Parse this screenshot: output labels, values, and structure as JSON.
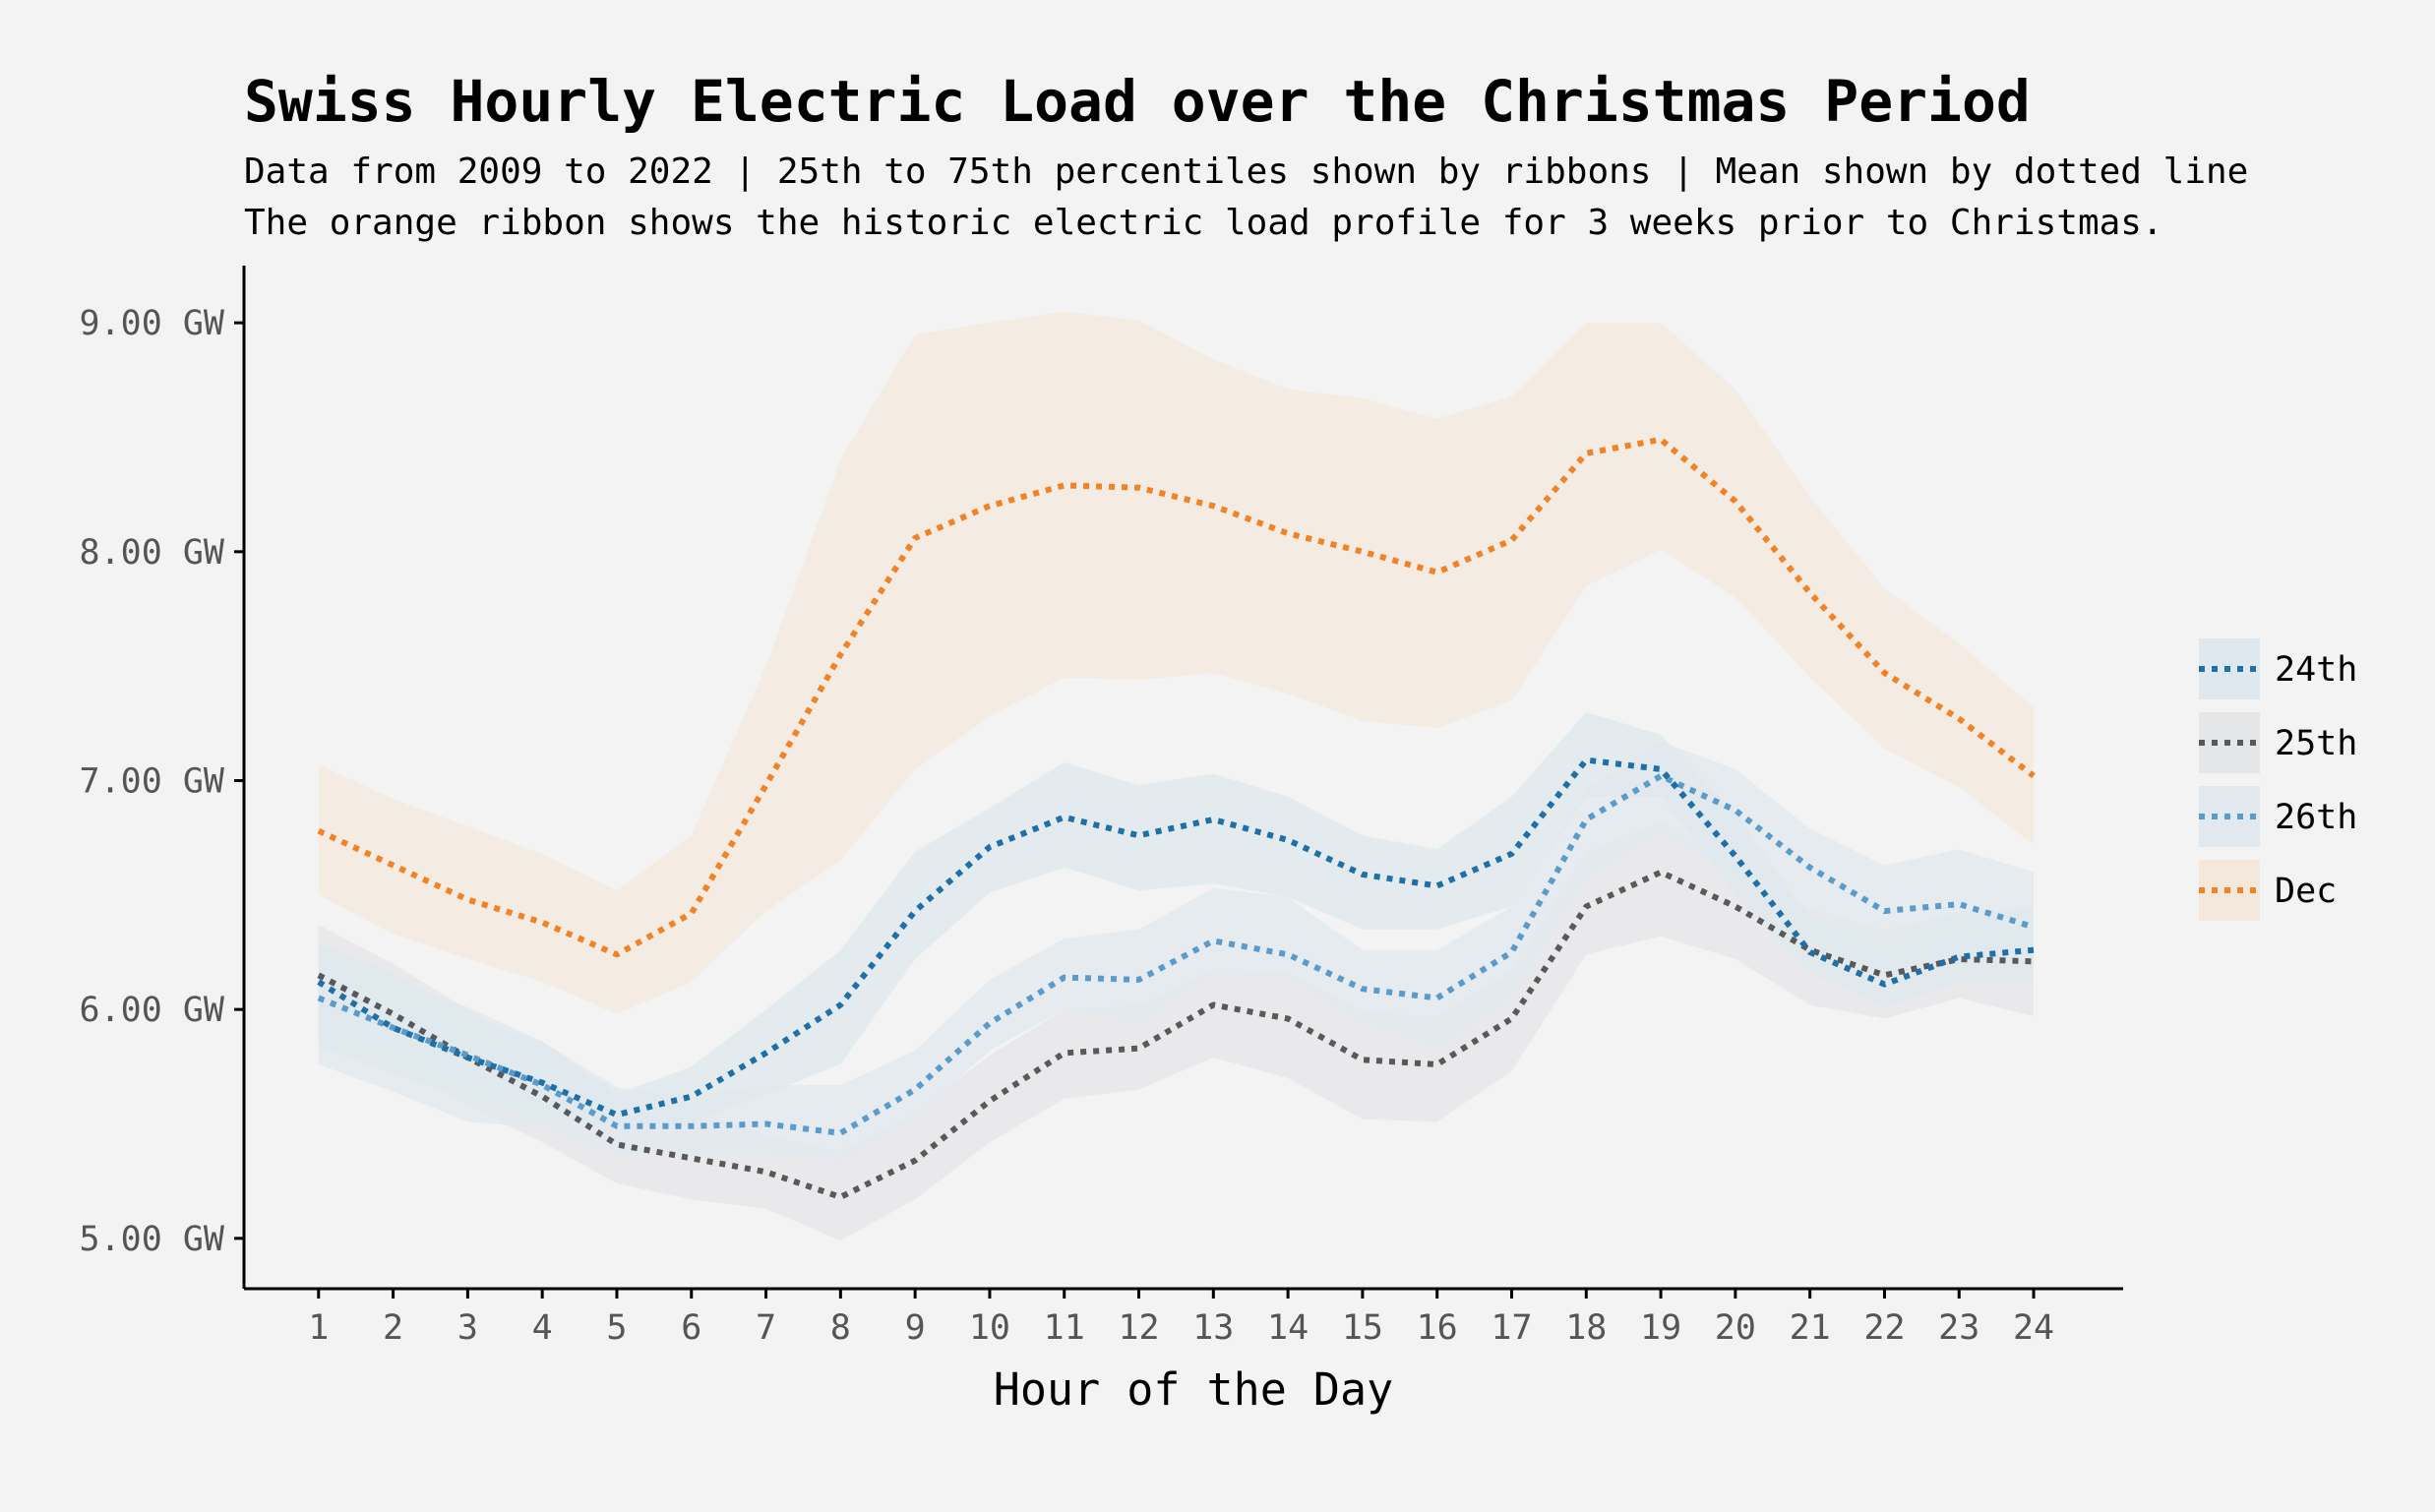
{
  "chart_data": {
    "type": "line",
    "title": "Swiss Hourly Electric Load over the Christmas Period",
    "subtitle_lines": [
      "Data from 2009 to 2022 | 25th to 75th percentiles shown by ribbons | Mean shown by dotted line",
      "The orange ribbon shows the historic electric load profile for 3 weeks prior to Christmas."
    ],
    "xlabel": "Hour of the Day",
    "ylabel": "",
    "x": [
      1,
      2,
      3,
      4,
      5,
      6,
      7,
      8,
      9,
      10,
      11,
      12,
      13,
      14,
      15,
      16,
      17,
      18,
      19,
      20,
      21,
      22,
      23,
      24
    ],
    "xlim": [
      0,
      25.2
    ],
    "ylim": [
      4.78,
      9.25
    ],
    "yticks": [
      5,
      6,
      7,
      8,
      9
    ],
    "ytick_labels": [
      "5.00 GW",
      "6.00 GW",
      "7.00 GW",
      "8.00 GW",
      "9.00 GW"
    ],
    "legend_position": "right",
    "grid": false,
    "series": [
      {
        "name": "Dec",
        "color": "#f28226",
        "ribbon_color": "#f4e8dd",
        "mean": [
          6.78,
          6.63,
          6.48,
          6.38,
          6.24,
          6.42,
          6.98,
          7.55,
          8.06,
          8.2,
          8.29,
          8.28,
          8.2,
          8.08,
          8.0,
          7.91,
          8.05,
          8.43,
          8.49,
          8.22,
          7.82,
          7.47,
          7.27,
          7.02
        ],
        "p25": [
          6.5,
          6.33,
          6.22,
          6.12,
          5.98,
          6.12,
          6.43,
          6.65,
          7.05,
          7.28,
          7.45,
          7.44,
          7.47,
          7.38,
          7.26,
          7.23,
          7.35,
          7.85,
          8.01,
          7.8,
          7.45,
          7.14,
          6.97,
          6.72
        ],
        "p75": [
          7.07,
          6.92,
          6.8,
          6.68,
          6.52,
          6.76,
          7.5,
          8.4,
          8.95,
          9.0,
          9.05,
          9.01,
          8.84,
          8.71,
          8.67,
          8.58,
          8.68,
          9.0,
          9.0,
          8.71,
          8.24,
          7.84,
          7.6,
          7.32
        ]
      },
      {
        "name": "25th",
        "color": "#595959",
        "ribbon_color": "#e5e6e8",
        "mean": [
          6.15,
          5.98,
          5.79,
          5.62,
          5.41,
          5.35,
          5.29,
          5.18,
          5.34,
          5.6,
          5.81,
          5.83,
          6.02,
          5.96,
          5.78,
          5.76,
          5.96,
          6.45,
          6.6,
          6.45,
          6.26,
          6.15,
          6.22,
          6.21
        ],
        "p25": [
          5.9,
          5.75,
          5.58,
          5.42,
          5.24,
          5.17,
          5.13,
          4.99,
          5.17,
          5.42,
          5.61,
          5.65,
          5.79,
          5.7,
          5.52,
          5.51,
          5.73,
          6.24,
          6.32,
          6.22,
          6.02,
          5.96,
          6.05,
          5.97
        ],
        "p75": [
          6.37,
          6.2,
          6.0,
          5.83,
          5.59,
          5.56,
          5.45,
          5.38,
          5.55,
          5.8,
          6.0,
          6.02,
          6.18,
          6.16,
          5.99,
          5.97,
          6.17,
          6.69,
          6.82,
          6.64,
          6.44,
          6.35,
          6.42,
          6.45
        ]
      },
      {
        "name": "26th",
        "color": "#5b9bcb",
        "ribbon_color": "#e1e8ee",
        "mean": [
          6.05,
          5.92,
          5.8,
          5.67,
          5.49,
          5.49,
          5.5,
          5.46,
          5.65,
          5.94,
          6.14,
          6.13,
          6.3,
          6.24,
          6.09,
          6.05,
          6.25,
          6.83,
          7.02,
          6.87,
          6.62,
          6.43,
          6.46,
          6.36
        ],
        "p25": [
          5.76,
          5.64,
          5.51,
          5.48,
          5.36,
          5.37,
          5.37,
          5.33,
          5.53,
          5.82,
          6.0,
          5.93,
          6.16,
          6.13,
          5.94,
          5.83,
          6.04,
          6.57,
          6.76,
          6.61,
          6.33,
          6.18,
          6.25,
          6.2
        ],
        "p75": [
          6.23,
          6.13,
          6.01,
          5.86,
          5.66,
          5.62,
          5.67,
          5.67,
          5.82,
          6.13,
          6.31,
          6.35,
          6.53,
          6.49,
          6.26,
          6.26,
          6.45,
          6.96,
          7.17,
          7.05,
          6.79,
          6.63,
          6.7,
          6.6
        ]
      },
      {
        "name": "24th",
        "color": "#1f6fa8",
        "ribbon_color": "#dfe8ee",
        "mean": [
          6.12,
          5.92,
          5.79,
          5.68,
          5.54,
          5.62,
          5.81,
          6.02,
          6.43,
          6.71,
          6.84,
          6.76,
          6.83,
          6.74,
          6.59,
          6.54,
          6.68,
          7.09,
          7.05,
          6.67,
          6.25,
          6.11,
          6.23,
          6.26
        ],
        "p25": [
          5.84,
          5.72,
          5.61,
          5.53,
          5.49,
          5.51,
          5.63,
          5.76,
          6.22,
          6.51,
          6.62,
          6.52,
          6.55,
          6.49,
          6.35,
          6.35,
          6.45,
          6.93,
          6.93,
          6.5,
          6.16,
          6.01,
          6.12,
          6.12
        ],
        "p75": [
          6.29,
          6.16,
          5.97,
          5.86,
          5.63,
          5.75,
          6.0,
          6.26,
          6.69,
          6.88,
          7.08,
          6.98,
          7.03,
          6.93,
          6.76,
          6.7,
          6.93,
          7.3,
          7.2,
          6.86,
          6.4,
          6.3,
          6.43,
          6.44
        ]
      }
    ],
    "legend_order": [
      "24th",
      "25th",
      "26th",
      "Dec"
    ]
  }
}
